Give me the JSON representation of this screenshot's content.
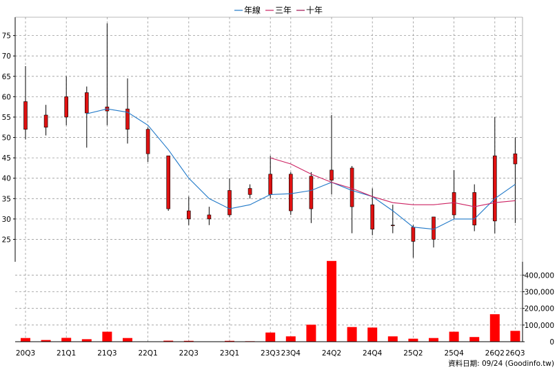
{
  "chart_data": [
    {
      "type": "candlestick",
      "legend": [
        "年線",
        "三年",
        "十年"
      ],
      "legend_colors": [
        "#1f78c8",
        "#cc2060",
        "#a01050"
      ],
      "y_ticks": [
        25,
        30,
        35,
        40,
        45,
        50,
        55,
        60,
        65,
        70,
        75
      ],
      "ylim": [
        19.5,
        79.5
      ],
      "up_color": "#dd1111",
      "down_color": "#22cc22",
      "candles": [
        {
          "open": 52.0,
          "high": 67.5,
          "low": 49.5,
          "close": 58.8
        },
        {
          "open": 52.5,
          "high": 58.0,
          "low": 50.5,
          "close": 55.5
        },
        {
          "open": 55.0,
          "high": 65.0,
          "low": 53.0,
          "close": 60.0
        },
        {
          "open": 56.0,
          "high": 62.5,
          "low": 47.5,
          "close": 61.0
        },
        {
          "open": 56.5,
          "high": 78.0,
          "low": 53.0,
          "close": 57.5
        },
        {
          "open": 52.0,
          "high": 64.5,
          "low": 48.5,
          "close": 57.0
        },
        {
          "open": 46.0,
          "high": 52.5,
          "low": 44.0,
          "close": 52.0
        },
        {
          "open": 32.5,
          "high": 45.5,
          "low": 32.0,
          "close": 45.5
        },
        {
          "open": 30.0,
          "high": 35.5,
          "low": 28.5,
          "close": 32.0
        },
        {
          "open": 30.0,
          "high": 33.0,
          "low": 28.5,
          "close": 31.0
        },
        {
          "open": 31.0,
          "high": 40.0,
          "low": 30.5,
          "close": 37.0
        },
        {
          "open": 36.0,
          "high": 38.5,
          "low": 35.0,
          "close": 37.5
        },
        {
          "open": 36.0,
          "high": 45.5,
          "low": 35.0,
          "close": 41.0
        },
        {
          "open": 32.0,
          "high": 41.5,
          "low": 31.0,
          "close": 41.0
        },
        {
          "open": 32.5,
          "high": 41.5,
          "low": 29.0,
          "close": 40.5
        },
        {
          "open": 39.5,
          "high": 55.5,
          "low": 36.0,
          "close": 42.0
        },
        {
          "open": 33.0,
          "high": 43.0,
          "low": 26.5,
          "close": 42.5
        },
        {
          "open": 27.5,
          "high": 37.5,
          "low": 26.0,
          "close": 33.5
        },
        {
          "open": 28.5,
          "high": 33.5,
          "low": 26.5,
          "close": 28.5
        },
        {
          "open": 24.5,
          "high": 28.5,
          "low": 20.5,
          "close": 28.0
        },
        {
          "open": 25.0,
          "high": 30.5,
          "low": 23.0,
          "close": 30.5
        },
        {
          "open": 31.0,
          "high": 42.0,
          "low": 30.0,
          "close": 36.5
        },
        {
          "open": 28.5,
          "high": 38.5,
          "low": 27.0,
          "close": 36.5
        },
        {
          "open": 29.5,
          "high": 55.0,
          "low": 26.5,
          "close": 45.5
        },
        {
          "open": 43.5,
          "high": 50.0,
          "low": 29.0,
          "close": 46.0
        }
      ],
      "ma_year": [
        null,
        null,
        null,
        55.8,
        57.0,
        56.2,
        53.0,
        47.0,
        40.0,
        35.0,
        32.5,
        33.5,
        36.0,
        36.2,
        37.0,
        39.0,
        37.0,
        35.5,
        32.0,
        28.0,
        27.5,
        30.0,
        30.0,
        35.0,
        38.5
      ],
      "ma_3y": [
        null,
        null,
        null,
        null,
        null,
        null,
        null,
        null,
        null,
        null,
        null,
        null,
        45.0,
        43.5,
        41.0,
        39.0,
        37.5,
        35.5,
        34.0,
        33.5,
        33.5,
        34.0,
        33.0,
        34.0,
        34.5
      ],
      "ma_10y": [
        null,
        null,
        null,
        null,
        null,
        null,
        null,
        null,
        null,
        null,
        null,
        null,
        null,
        null,
        null,
        null,
        null,
        null,
        null,
        null,
        null,
        null,
        null,
        null,
        null
      ]
    },
    {
      "type": "bar",
      "y_ticks": [
        "0",
        "100,000",
        "200,000",
        "300,000",
        "400,000"
      ],
      "ylim": [
        0,
        480000
      ],
      "bar_color": "#ff0000",
      "values": [
        22000,
        10000,
        23000,
        15000,
        60000,
        22000,
        2000,
        6000,
        5000,
        2000,
        5000,
        3000,
        55000,
        32000,
        102000,
        485000,
        88000,
        85000,
        32000,
        18000,
        22000,
        60000,
        28000,
        165000,
        65000
      ]
    }
  ],
  "x_labels": [
    "20Q3",
    "21Q1",
    "21Q3",
    "22Q1",
    "22Q3",
    "23Q1",
    "23Q3",
    "23Q4",
    "24Q2",
    "24Q4",
    "25Q2",
    "25Q4",
    "26Q2",
    "26Q3"
  ],
  "x_label_index": [
    0,
    2,
    4,
    6,
    8,
    10,
    12,
    13,
    15,
    17,
    19,
    21,
    23,
    24
  ],
  "footer": "資料日期: 09/24  (Goodinfo.tw)"
}
